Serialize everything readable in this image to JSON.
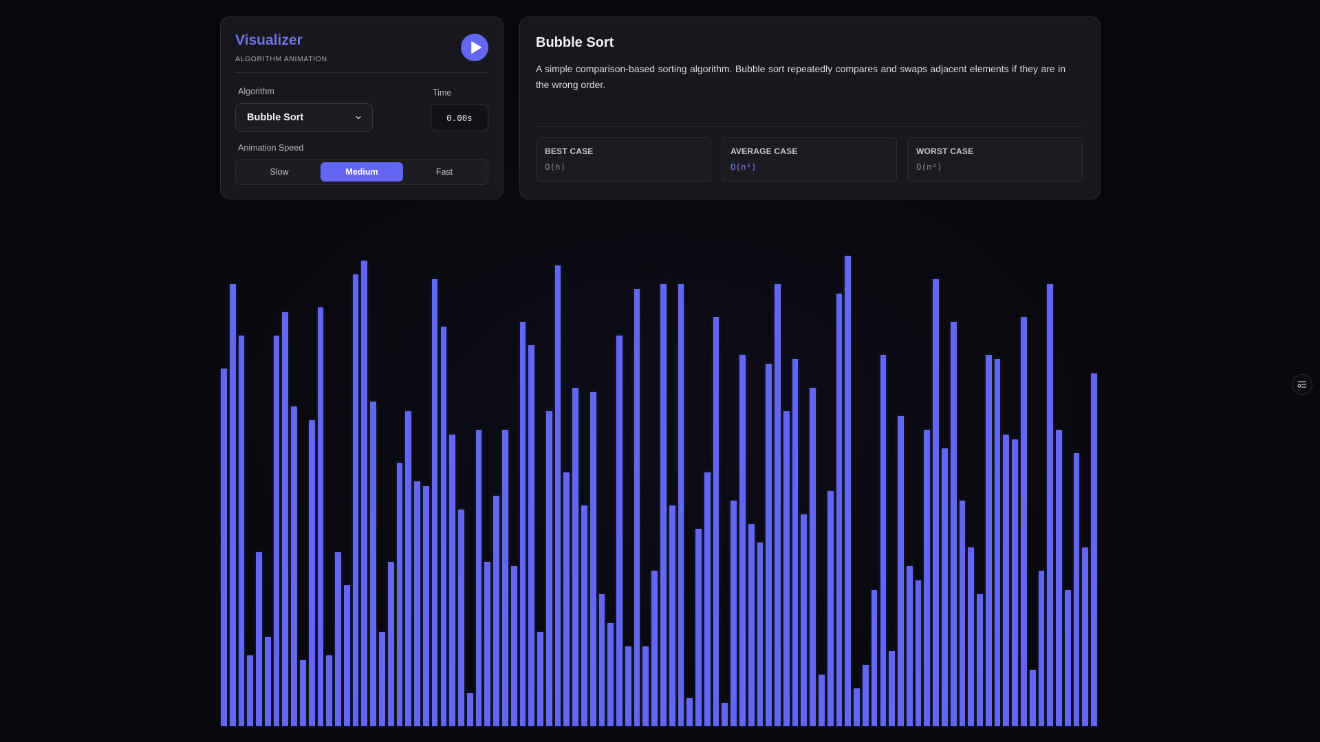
{
  "header": {
    "title": "Visualizer",
    "subtitle": "ALGORITHM ANIMATION",
    "play_icon": "play-icon"
  },
  "controls": {
    "algorithm_label": "Algorithm",
    "algorithm_value": "Bubble Sort",
    "time_label": "Time",
    "time_value": "0.00s",
    "speed_label": "Animation Speed",
    "speed_options": [
      "Slow",
      "Medium",
      "Fast"
    ],
    "speed_selected": "Medium"
  },
  "info": {
    "title": "Bubble Sort",
    "description": "A simple comparison-based sorting algorithm. Bubble sort repeatedly compares and swaps adjacent elements if they are in the wrong order.",
    "cases": [
      {
        "label": "BEST CASE",
        "value": "O(n)"
      },
      {
        "label": "AVERAGE CASE",
        "value": "O(n²)"
      },
      {
        "label": "WORST CASE",
        "value": "O(n²)"
      }
    ]
  },
  "colors": {
    "accent": "#6366f1",
    "background": "#07070c",
    "panel": "#17171d"
  },
  "array": {
    "values": [
      76,
      94,
      83,
      15,
      37,
      19,
      83,
      88,
      68,
      14,
      65,
      89,
      15,
      37,
      30,
      96,
      99,
      69,
      20,
      35,
      56,
      67,
      52,
      51,
      95,
      85,
      62,
      46,
      7,
      63,
      35,
      49,
      63,
      34,
      86,
      81,
      20,
      67,
      98,
      54,
      72,
      47,
      71,
      28,
      22,
      83,
      17,
      93,
      17,
      33,
      94,
      47,
      94,
      6,
      42,
      54,
      87,
      5,
      48,
      79,
      43,
      39,
      77,
      94,
      67,
      78,
      45,
      72,
      11,
      50,
      92,
      100,
      8,
      13,
      29,
      79,
      16,
      66,
      34,
      31,
      63,
      95,
      59,
      86,
      48,
      38,
      28,
      79,
      78,
      62,
      61,
      87,
      12,
      33,
      94,
      63,
      29,
      58,
      38,
      75
    ]
  },
  "side": {
    "icon": "sliders-icon"
  }
}
